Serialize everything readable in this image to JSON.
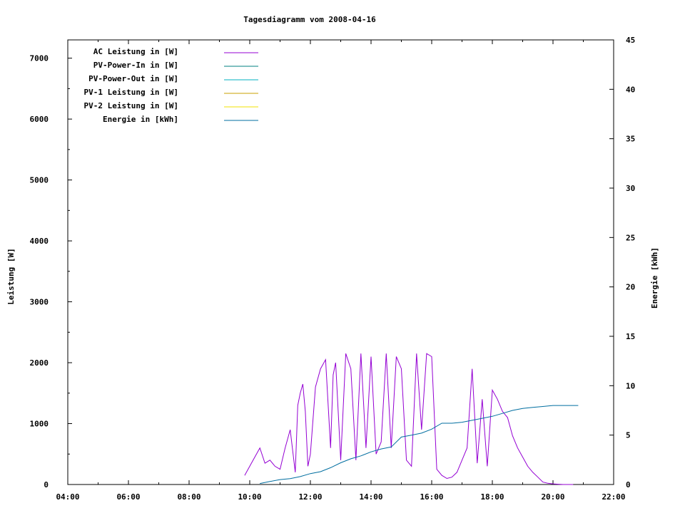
{
  "chart_data": {
    "type": "line",
    "title": "Tagesdiagramm vom 2008-04-16",
    "xlabel": "",
    "ylabel_left": "Leistung [W]",
    "ylabel_right": "Energie [kWh]",
    "x_ticks": [
      "04:00",
      "06:00",
      "08:00",
      "10:00",
      "12:00",
      "14:00",
      "16:00",
      "18:00",
      "20:00",
      "22:00"
    ],
    "y_left_ticks": [
      "0",
      "1000",
      "2000",
      "3000",
      "4000",
      "5000",
      "6000",
      "7000"
    ],
    "y_right_ticks": [
      "0",
      "5",
      "10",
      "15",
      "20",
      "25",
      "30",
      "35",
      "40",
      "45"
    ],
    "xlim": [
      "04:00",
      "22:00"
    ],
    "ylim_left": [
      0,
      7300
    ],
    "ylim_right": [
      0,
      45
    ],
    "legend_position": "top-left",
    "series": [
      {
        "name": "AC Leistung in [W]",
        "axis": "left",
        "color": "#9400d3",
        "x": [
          "09:50",
          "10:00",
          "10:10",
          "10:20",
          "10:30",
          "10:40",
          "10:50",
          "11:00",
          "11:10",
          "11:20",
          "11:30",
          "11:35",
          "11:40",
          "11:45",
          "11:50",
          "11:55",
          "12:00",
          "12:10",
          "12:20",
          "12:30",
          "12:40",
          "12:45",
          "12:50",
          "13:00",
          "13:10",
          "13:20",
          "13:30",
          "13:40",
          "13:50",
          "14:00",
          "14:10",
          "14:20",
          "14:30",
          "14:40",
          "14:50",
          "15:00",
          "15:10",
          "15:20",
          "15:30",
          "15:40",
          "15:50",
          "16:00",
          "16:10",
          "16:20",
          "16:30",
          "16:40",
          "16:50",
          "17:00",
          "17:10",
          "17:20",
          "17:30",
          "17:40",
          "17:50",
          "18:00",
          "18:10",
          "18:20",
          "18:30",
          "18:40",
          "18:50",
          "19:00",
          "19:10",
          "19:20",
          "19:30",
          "19:40",
          "19:50",
          "20:00",
          "20:10",
          "20:20",
          "20:30",
          "20:40"
        ],
        "values": [
          150,
          300,
          450,
          600,
          350,
          400,
          300,
          250,
          600,
          900,
          200,
          1300,
          1500,
          1650,
          1200,
          300,
          500,
          1600,
          1900,
          2050,
          600,
          1800,
          2000,
          400,
          2150,
          1900,
          400,
          2150,
          600,
          2100,
          500,
          700,
          2150,
          600,
          2100,
          1900,
          400,
          300,
          2150,
          900,
          2150,
          2100,
          250,
          150,
          100,
          120,
          200,
          400,
          600,
          1900,
          350,
          1400,
          300,
          1550,
          1400,
          1200,
          1100,
          800,
          600,
          450,
          300,
          200,
          120,
          40,
          20,
          10,
          5,
          0,
          0,
          0
        ]
      },
      {
        "name": "PV-Power-In in [W]",
        "axis": "left",
        "color": "#008080",
        "x": [],
        "values": []
      },
      {
        "name": "PV-Power-Out in [W]",
        "axis": "left",
        "color": "#00b0c0",
        "x": [],
        "values": []
      },
      {
        "name": "PV-1 Leistung in [W]",
        "axis": "left",
        "color": "#c8a000",
        "x": [],
        "values": []
      },
      {
        "name": "PV-2 Leistung in [W]",
        "axis": "left",
        "color": "#f0e000",
        "x": [],
        "values": []
      },
      {
        "name": "Energie in [kWh]",
        "axis": "right",
        "color": "#006ea0",
        "x": [
          "10:20",
          "10:40",
          "11:00",
          "11:20",
          "11:40",
          "12:00",
          "12:20",
          "12:40",
          "13:00",
          "13:20",
          "13:40",
          "14:00",
          "14:20",
          "14:40",
          "15:00",
          "15:20",
          "15:40",
          "16:00",
          "16:20",
          "16:40",
          "17:00",
          "17:20",
          "17:40",
          "18:00",
          "18:20",
          "18:40",
          "19:00",
          "19:20",
          "19:40",
          "20:00",
          "20:20",
          "20:40",
          "20:50"
        ],
        "values": [
          0.1,
          0.3,
          0.5,
          0.6,
          0.8,
          1.1,
          1.3,
          1.7,
          2.2,
          2.6,
          2.9,
          3.3,
          3.6,
          3.8,
          4.8,
          5.0,
          5.2,
          5.6,
          6.2,
          6.2,
          6.3,
          6.5,
          6.7,
          6.9,
          7.2,
          7.5,
          7.7,
          7.8,
          7.9,
          8.0,
          8.0,
          8.0,
          8.0
        ]
      }
    ]
  }
}
